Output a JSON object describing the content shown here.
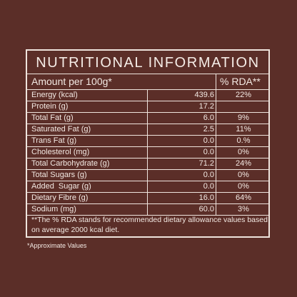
{
  "panel": {
    "title": "NUTRITIONAL INFORMATION",
    "header": {
      "amount_label": "Amount per 100g*",
      "rda_label": "% RDA**"
    },
    "rows": [
      {
        "nutrient": "Energy (kcal)",
        "amount": "439.6",
        "rda": "22%"
      },
      {
        "nutrient": "Protein (g)",
        "amount": "17.2",
        "rda": ""
      },
      {
        "nutrient": "Total Fat (g)",
        "amount": "6.0",
        "rda": "9%"
      },
      {
        "nutrient": "Saturated Fat (g)",
        "amount": "2.5",
        "rda": "11%"
      },
      {
        "nutrient": "Trans Fat (g)",
        "amount": "0.0",
        "rda": "0.%"
      },
      {
        "nutrient": "Cholesterol (mg)",
        "amount": "0.0",
        "rda": "0%"
      },
      {
        "nutrient": "Total Carbohydrate (g)",
        "amount": "71.2",
        "rda": "24%"
      },
      {
        "nutrient": "Total Sugars (g)",
        "amount": "0.0",
        "rda": "0%"
      },
      {
        "nutrient": "Added  Sugar (g)",
        "amount": "0.0",
        "rda": "0%"
      },
      {
        "nutrient": "Dietary Fibre (g)",
        "amount": "16.0",
        "rda": "64%"
      },
      {
        "nutrient": "Sodium (mg)",
        "amount": "60.0",
        "rda": "3%"
      }
    ],
    "footnote": "**The % RDA stands for recommended dietary allowance values based on average 2000 kcal diet."
  },
  "approx_note": "*Approximate Values"
}
